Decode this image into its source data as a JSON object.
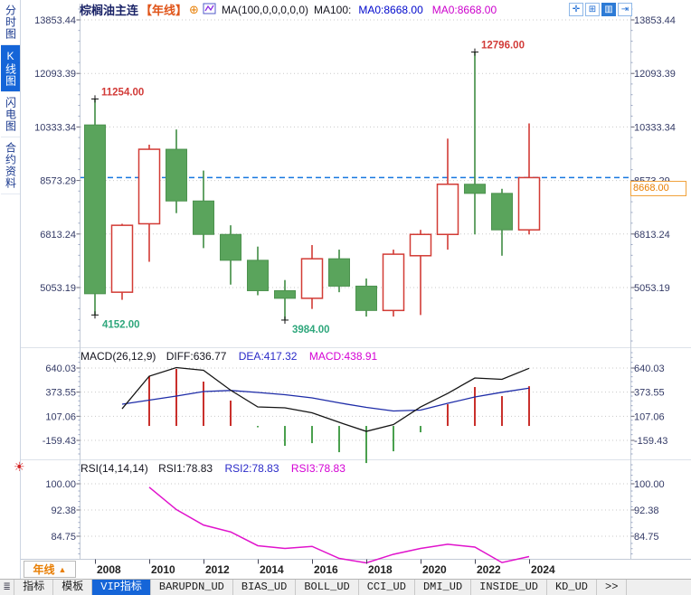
{
  "header": {
    "symbol": "棕榈油主连",
    "period": "【年线】",
    "plus_icon": "⊕",
    "ma_formula": "MA(100,0,0,0,0,0)",
    "ma100_label": "MA100:",
    "ma0_blue": "MA0:8668.00",
    "ma0_magenta": "MA0:8668.00"
  },
  "window_icons": [
    {
      "name": "crosshair-icon",
      "glyph": "✛",
      "active": false
    },
    {
      "name": "axis-scale-icon",
      "glyph": "⊞",
      "active": false
    },
    {
      "name": "bar-view-icon",
      "glyph": "▥",
      "active": true
    },
    {
      "name": "goto-latest-icon",
      "glyph": "⇥",
      "active": false
    }
  ],
  "sidebar": {
    "items": [
      {
        "key": "timeshare",
        "label": "分时图",
        "active": false
      },
      {
        "key": "kline",
        "label": "K线图",
        "active": true
      },
      {
        "key": "flash",
        "label": "闪电图",
        "active": false
      },
      {
        "key": "contract-info",
        "label": "合约资料",
        "active": false
      }
    ]
  },
  "macd_header": {
    "formula": "MACD(26,12,9)",
    "diff": "DIFF:636.77",
    "dea": "DEA:417.32",
    "macd": "MACD:438.91"
  },
  "rsi_header": {
    "formula": "RSI(14,14,14)",
    "rsi1": "RSI1:78.83",
    "rsi2": "RSI2:78.83",
    "rsi3": "RSI3:78.83"
  },
  "price_tag": "8668.00",
  "sun_icon": "☀",
  "period_button": {
    "label": "年线",
    "arrow": "▲"
  },
  "x_axis_years": [
    "2008",
    "2010",
    "2012",
    "2014",
    "2016",
    "2018",
    "2020",
    "2022",
    "2024"
  ],
  "bottom_tabs": [
    {
      "key": "menu",
      "label": "≣",
      "active": false,
      "icon": true
    },
    {
      "key": "indicator",
      "label": "指标",
      "active": false
    },
    {
      "key": "template",
      "label": "模板",
      "active": false
    },
    {
      "key": "vip-indicator",
      "label": "VIP指标",
      "active": true
    },
    {
      "key": "barupdn",
      "label": "BARUPDN_UD",
      "active": false
    },
    {
      "key": "bias",
      "label": "BIAS_UD",
      "active": false
    },
    {
      "key": "boll",
      "label": "BOLL_UD",
      "active": false
    },
    {
      "key": "cci",
      "label": "CCI_UD",
      "active": false
    },
    {
      "key": "dmi",
      "label": "DMI_UD",
      "active": false
    },
    {
      "key": "inside",
      "label": "INSIDE_UD",
      "active": false
    },
    {
      "key": "kd",
      "label": "KD_UD",
      "active": false
    },
    {
      "key": "more",
      "label": ">>",
      "active": false
    }
  ],
  "colors": {
    "up": "#d23b35",
    "up_fill": "#ffffff",
    "down": "#5aa45c",
    "down_border": "#4c924e",
    "wick_down": "#3f8c43",
    "grid": "#c9c9c9",
    "axis_text": "#333a66",
    "dashed_line": "#1677e0",
    "annotation_high": "#d23b38",
    "annotation_low": "#2fa77c",
    "macd_diff": "#141414",
    "macd_dea": "#1e2ca8",
    "macd_hist_pos": "#c9302c",
    "macd_hist_neg": "#4aa04e",
    "rsi_line": "#e013cc",
    "accent_blue": "#1565d8",
    "orange": "#e87d00"
  },
  "chart_data": [
    {
      "type": "candlestick",
      "title": "棕榈油主连 年线 (yearly K-line)",
      "years": [
        2008,
        2009,
        2010,
        2011,
        2012,
        2013,
        2014,
        2015,
        2016,
        2017,
        2018,
        2019,
        2020,
        2021,
        2022,
        2023,
        2024
      ],
      "ohlc": [
        [
          10400,
          11254,
          4152,
          4850
        ],
        [
          4900,
          7150,
          4650,
          7100
        ],
        [
          7150,
          9750,
          5900,
          9600
        ],
        [
          9600,
          10250,
          7500,
          7900
        ],
        [
          7900,
          8900,
          6350,
          6800
        ],
        [
          6800,
          7100,
          5150,
          5950
        ],
        [
          5950,
          6400,
          4800,
          4950
        ],
        [
          4950,
          5300,
          3984,
          4700
        ],
        [
          4700,
          6450,
          4350,
          6000
        ],
        [
          6000,
          6300,
          4900,
          5100
        ],
        [
          5100,
          5350,
          4100,
          4300
        ],
        [
          4300,
          6300,
          4100,
          6150
        ],
        [
          6100,
          6950,
          4150,
          6800
        ],
        [
          6800,
          9950,
          6300,
          8450
        ],
        [
          8450,
          12796,
          6800,
          8150
        ],
        [
          8150,
          8300,
          6100,
          6950
        ],
        [
          6950,
          10450,
          6800,
          8668
        ]
      ],
      "y_ticks": [
        "13853.44",
        "12093.39",
        "10333.34",
        "8573.29",
        "6813.24",
        "5053.19"
      ],
      "current_price": 8668.0,
      "annotations": [
        {
          "year": 2008,
          "type": "high",
          "value": 11254.0,
          "label": "11254.00"
        },
        {
          "year": 2008,
          "type": "low",
          "value": 4152.0,
          "label": "4152.00"
        },
        {
          "year": 2015,
          "type": "low",
          "value": 3984.0,
          "label": "3984.00"
        },
        {
          "year": 2022,
          "type": "high",
          "value": 12796.0,
          "label": "12796.00"
        }
      ]
    },
    {
      "type": "macd",
      "years": [
        2009,
        2010,
        2011,
        2012,
        2013,
        2014,
        2015,
        2016,
        2017,
        2018,
        2019,
        2020,
        2021,
        2022,
        2023,
        2024
      ],
      "diff": [
        190,
        550,
        645,
        615,
        395,
        210,
        200,
        145,
        40,
        -60,
        15,
        210,
        360,
        530,
        515,
        636.77
      ],
      "dea": [
        240,
        285,
        330,
        380,
        392,
        370,
        345,
        310,
        255,
        205,
        165,
        175,
        250,
        320,
        372,
        417.32
      ],
      "hist": [
        null,
        550,
        630,
        490,
        280,
        -15,
        -220,
        -190,
        -290,
        -410,
        -280,
        -70,
        240,
        430,
        330,
        438.91
      ],
      "y_ticks": [
        "640.03",
        "373.55",
        "107.06",
        "-159.43"
      ]
    },
    {
      "type": "rsi",
      "years": [
        2010,
        2011,
        2012,
        2013,
        2014,
        2015,
        2016,
        2017,
        2018,
        2019,
        2020,
        2021,
        2022,
        2023,
        2024
      ],
      "values": [
        99.0,
        92.5,
        88.0,
        86.0,
        82.0,
        81.2,
        81.8,
        78.3,
        77.0,
        79.5,
        81.2,
        82.4,
        81.6,
        77.1,
        78.83
      ],
      "y_ticks": [
        "100.00",
        "92.38",
        "84.75"
      ]
    }
  ]
}
